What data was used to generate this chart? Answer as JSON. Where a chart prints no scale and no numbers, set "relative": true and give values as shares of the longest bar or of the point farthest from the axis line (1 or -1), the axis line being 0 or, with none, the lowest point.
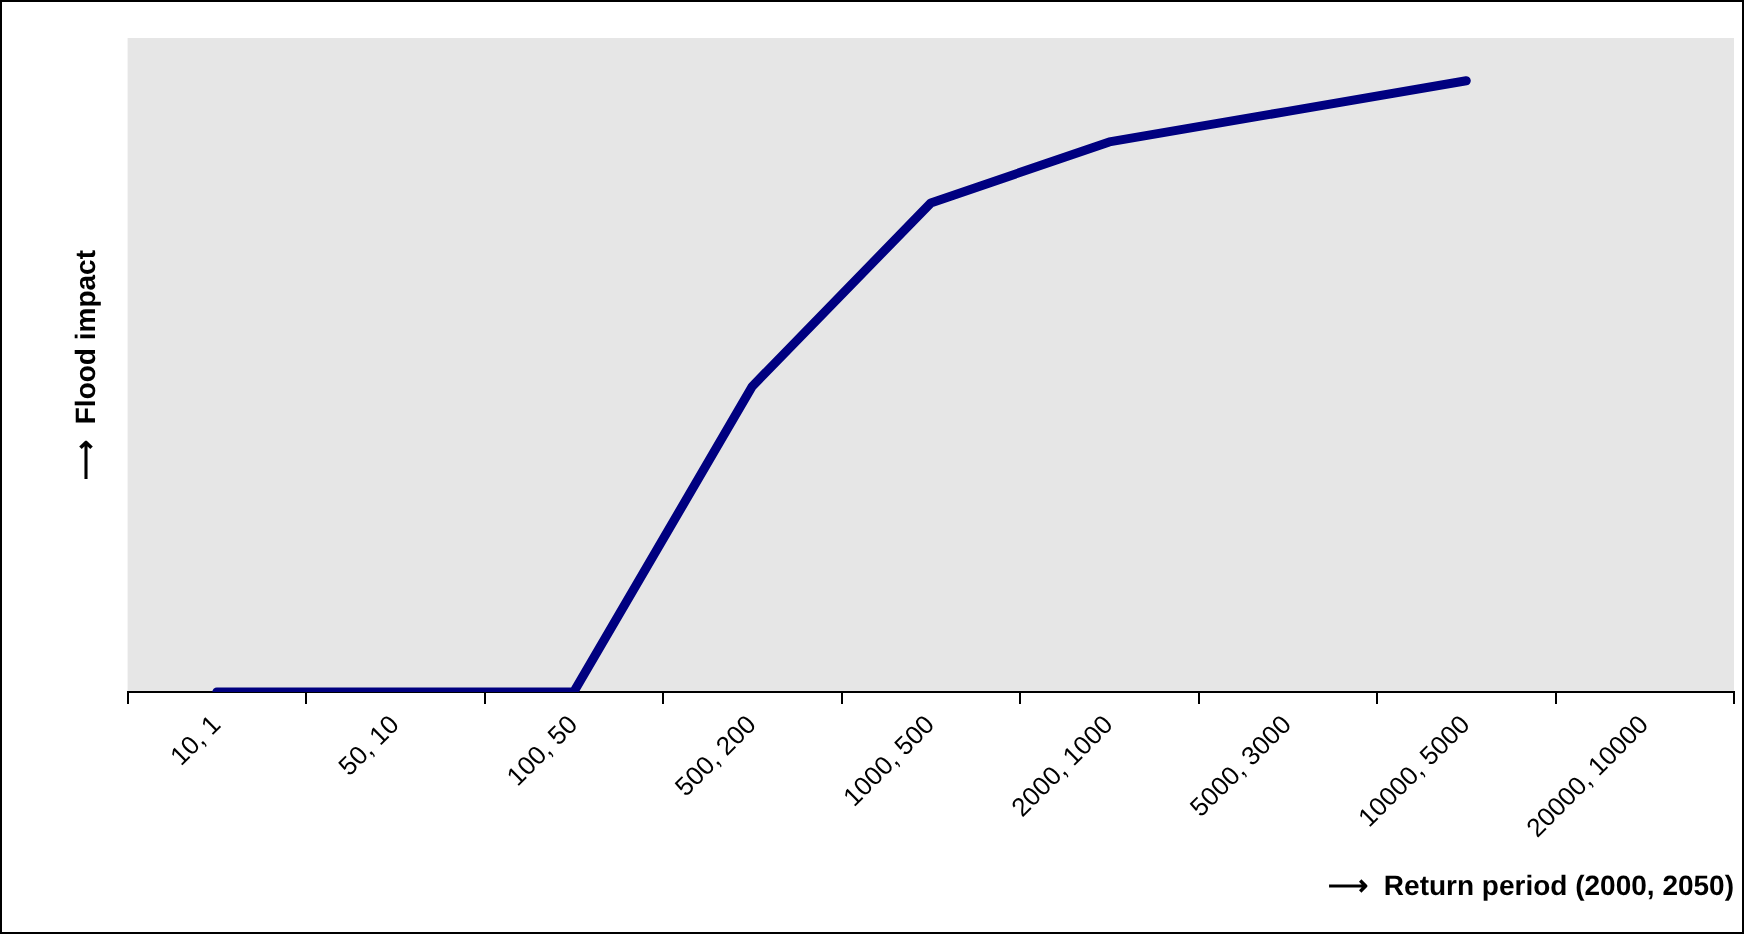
{
  "chart_data": {
    "type": "line",
    "relative": true,
    "xlabel": "⟶  Return period (2000, 2050)",
    "ylabel": "⟶  Flood impact",
    "categories": [
      "10, 1",
      "50, 10",
      "100, 50",
      "500, 200",
      "1000, 500",
      "2000, 1000",
      "5000, 3000",
      "10000, 5000",
      "20000, 10000"
    ],
    "series": [
      {
        "color": "#000080",
        "values": [
          0,
          0,
          0,
          0.5,
          0.8,
          0.9,
          0.95,
          1,
          null
        ]
      }
    ],
    "grid": false,
    "legend": false,
    "marker": "none",
    "line_style": "solid"
  }
}
